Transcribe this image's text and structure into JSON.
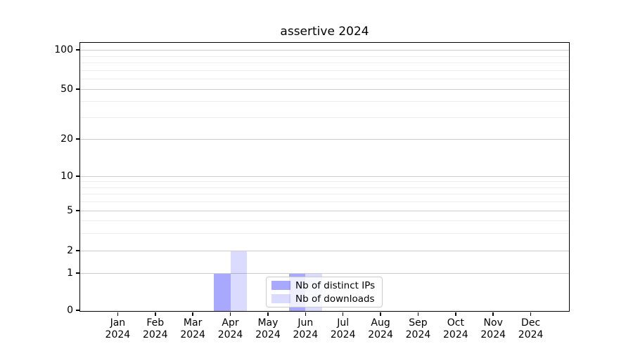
{
  "title": "assertive 2024",
  "chart_data": {
    "type": "bar",
    "title": "assertive 2024",
    "categories": [
      "Jan",
      "Feb",
      "Mar",
      "Apr",
      "May",
      "Jun",
      "Jul",
      "Aug",
      "Sep",
      "Oct",
      "Nov",
      "Dec"
    ],
    "year_label": "2024",
    "series": [
      {
        "name": "Nb of distinct IPs",
        "values": [
          0,
          0,
          0,
          1,
          0,
          1,
          0,
          0,
          0,
          0,
          0,
          0
        ],
        "color": "rgba(0,0,255,0.34)"
      },
      {
        "name": "Nb of downloads",
        "values": [
          0,
          0,
          0,
          2,
          0,
          1,
          0,
          0,
          0,
          0,
          0,
          0
        ],
        "color": "rgba(0,0,255,0.14)"
      }
    ],
    "y_axis": {
      "scale": "symlog",
      "major_ticks": [
        0,
        1,
        2,
        5,
        10,
        20,
        50,
        100
      ],
      "minor_ticks": [
        3,
        4,
        6,
        7,
        8,
        9,
        30,
        40,
        60,
        70,
        80,
        90
      ],
      "ylim": [
        0,
        100
      ]
    },
    "xlabel": "",
    "ylabel": "",
    "grid": "both",
    "legend_position": "inside-lower-center"
  },
  "colors": {
    "bar_distinct_ips": "rgba(0,0,255,0.34)",
    "bar_downloads": "rgba(0,0,255,0.14)",
    "grid_major": "#cdcdcd",
    "grid_minor": "#ededed",
    "axis": "#000000",
    "legend_border": "#cccccc",
    "legend_bg": "rgba(255,255,255,0.8)"
  }
}
